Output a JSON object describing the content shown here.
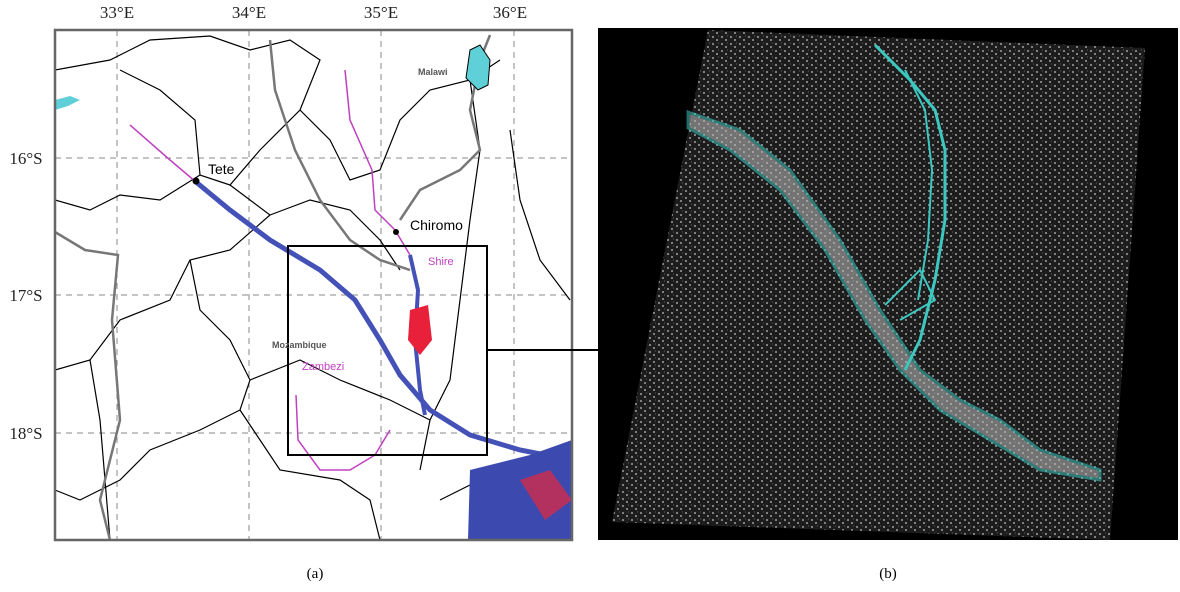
{
  "map": {
    "lon_labels": [
      "33°E",
      "34°E",
      "35°E",
      "36°E"
    ],
    "lat_labels": [
      "16°S",
      "17°S",
      "18°S"
    ],
    "places": {
      "tete": "Tete",
      "chiromo": "Chiromo",
      "malawi": "Malawi",
      "mozambique": "Mozambique",
      "shire": "Shire",
      "zambezi": "Zambezi"
    }
  },
  "captions": {
    "a": "(a)",
    "b": "(b)"
  }
}
